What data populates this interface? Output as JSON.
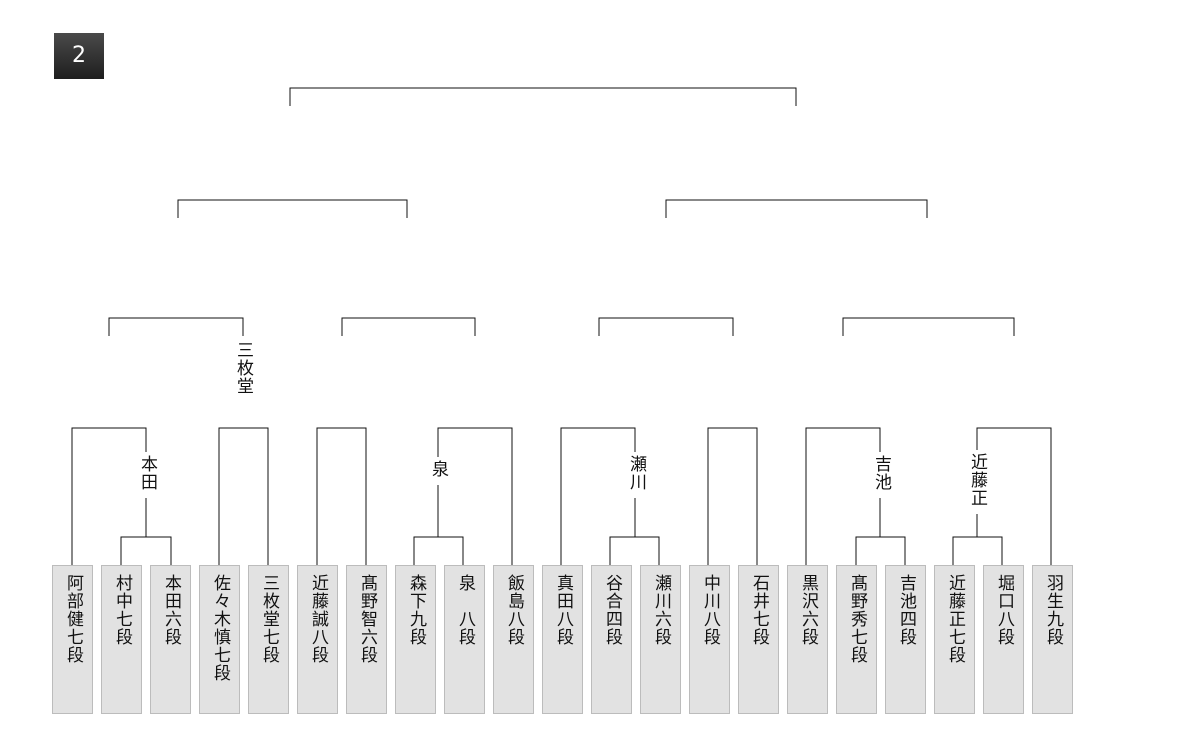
{
  "badge": "2",
  "players": [
    "阿部健七段",
    "村中七段",
    "本田六段",
    "佐々木慎七段",
    "三枚堂七段",
    "近藤誠八段",
    "髙野智六段",
    "森下九段",
    "泉　八段",
    "飯島八段",
    "真田八段",
    "谷合四段",
    "瀬川六段",
    "中川八段",
    "石井七段",
    "黒沢六段",
    "髙野秀七段",
    "吉池四段",
    "近藤正七段",
    "堀口八段",
    "羽生九段"
  ],
  "winners": {
    "m_honda": "本田",
    "m_sanmaido": "三枚堂",
    "m_izumi": "泉",
    "m_segawa": "瀬川",
    "m_yoshiike": "吉池",
    "m_kondo": "近藤正"
  }
}
